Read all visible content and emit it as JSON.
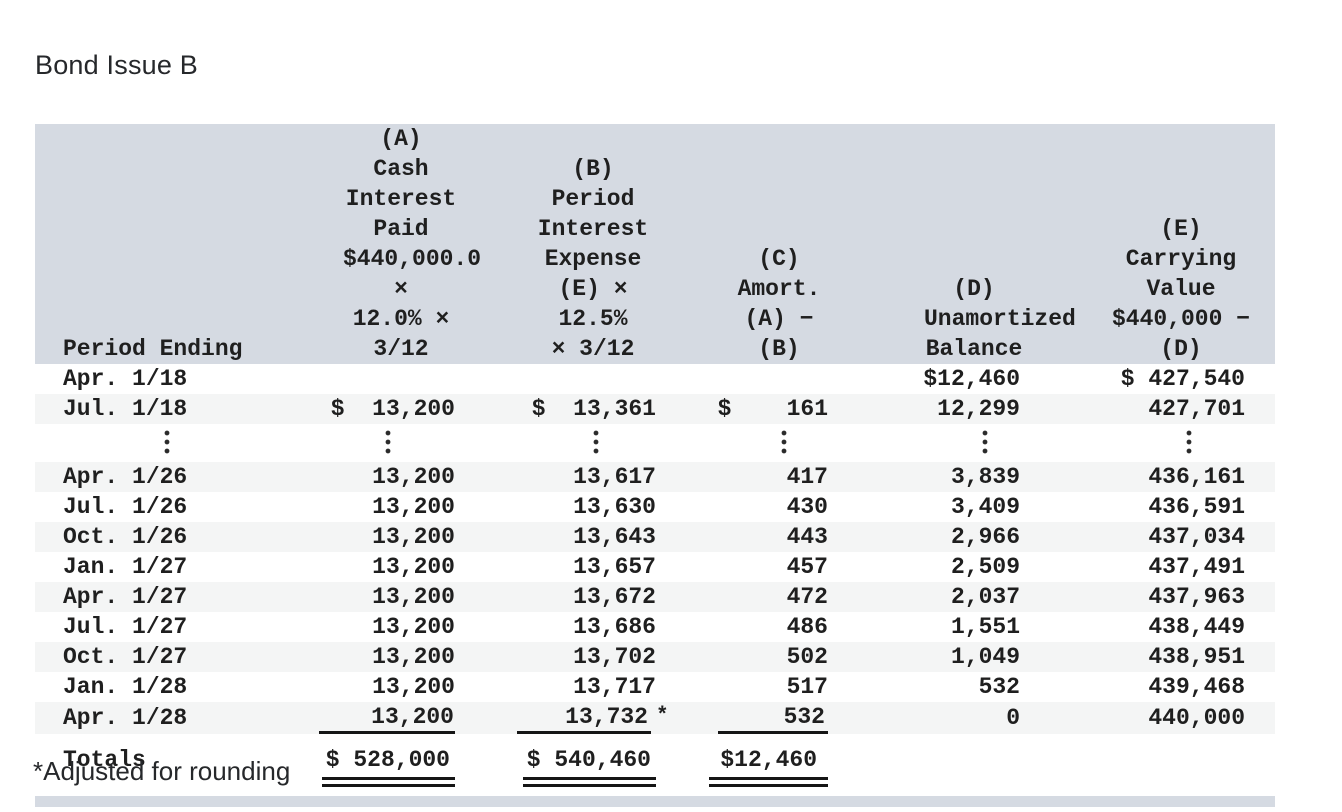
{
  "title": "Bond Issue B",
  "footnote": "*Adjusted for rounding",
  "colors": {
    "header_bg": "#d5dae2",
    "stripe_bg": "#f4f5f5",
    "text": "#1f1f1f"
  },
  "table": {
    "header": {
      "period": [
        "Period Ending"
      ],
      "colA": [
        "(A)",
        "Cash",
        "Interest",
        "Paid",
        "$440,000.0 ×",
        "12.0% × 3/12"
      ],
      "colB": [
        "(B)",
        "Period",
        "Interest",
        "Expense",
        "(E) × 12.5%",
        "× 3/12"
      ],
      "colC": [
        "(C)",
        "Amort.",
        "(A) − (B)"
      ],
      "colD": [
        "(D)",
        "Unamortized",
        "Balance"
      ],
      "colE": [
        "(E)",
        "Carrying",
        "Value",
        "$440,000 −",
        "(D)"
      ]
    },
    "rows": [
      {
        "period": "Apr. 1/18",
        "a": "",
        "b": "",
        "c": "",
        "d": "$12,460",
        "e": "$ 427,540",
        "shade": false
      },
      {
        "period": "Jul. 1/18",
        "a": "$  13,200",
        "b": "$  13,361",
        "c": "$    161",
        "d": "12,299",
        "e": "427,701",
        "shade": true
      },
      {
        "type": "ellipsis"
      },
      {
        "period": "Apr. 1/26",
        "a": "13,200",
        "b": "13,617",
        "c": "417",
        "d": "3,839",
        "e": "436,161",
        "shade": true
      },
      {
        "period": "Jul. 1/26",
        "a": "13,200",
        "b": "13,630",
        "c": "430",
        "d": "3,409",
        "e": "436,591",
        "shade": false
      },
      {
        "period": "Oct. 1/26",
        "a": "13,200",
        "b": "13,643",
        "c": "443",
        "d": "2,966",
        "e": "437,034",
        "shade": true
      },
      {
        "period": "Jan. 1/27",
        "a": "13,200",
        "b": "13,657",
        "c": "457",
        "d": "2,509",
        "e": "437,491",
        "shade": false
      },
      {
        "period": "Apr. 1/27",
        "a": "13,200",
        "b": "13,672",
        "c": "472",
        "d": "2,037",
        "e": "437,963",
        "shade": true
      },
      {
        "period": "Jul. 1/27",
        "a": "13,200",
        "b": "13,686",
        "c": "486",
        "d": "1,551",
        "e": "438,449",
        "shade": false
      },
      {
        "period": "Oct. 1/27",
        "a": "13,200",
        "b": "13,702",
        "c": "502",
        "d": "1,049",
        "e": "438,951",
        "shade": true
      },
      {
        "period": "Jan. 1/28",
        "a": "13,200",
        "b": "13,717",
        "c": "517",
        "d": "532",
        "e": "439,468",
        "shade": false
      },
      {
        "period": "Apr. 1/28",
        "a": "13,200",
        "b": "13,732",
        "b_suffix": "*",
        "c": "532",
        "d": "0",
        "e": "440,000",
        "shade": true,
        "rule": true
      }
    ],
    "totals": {
      "label": "Totals",
      "a": "$ 528,000",
      "b": "$ 540,460",
      "c": "$12,460"
    }
  }
}
